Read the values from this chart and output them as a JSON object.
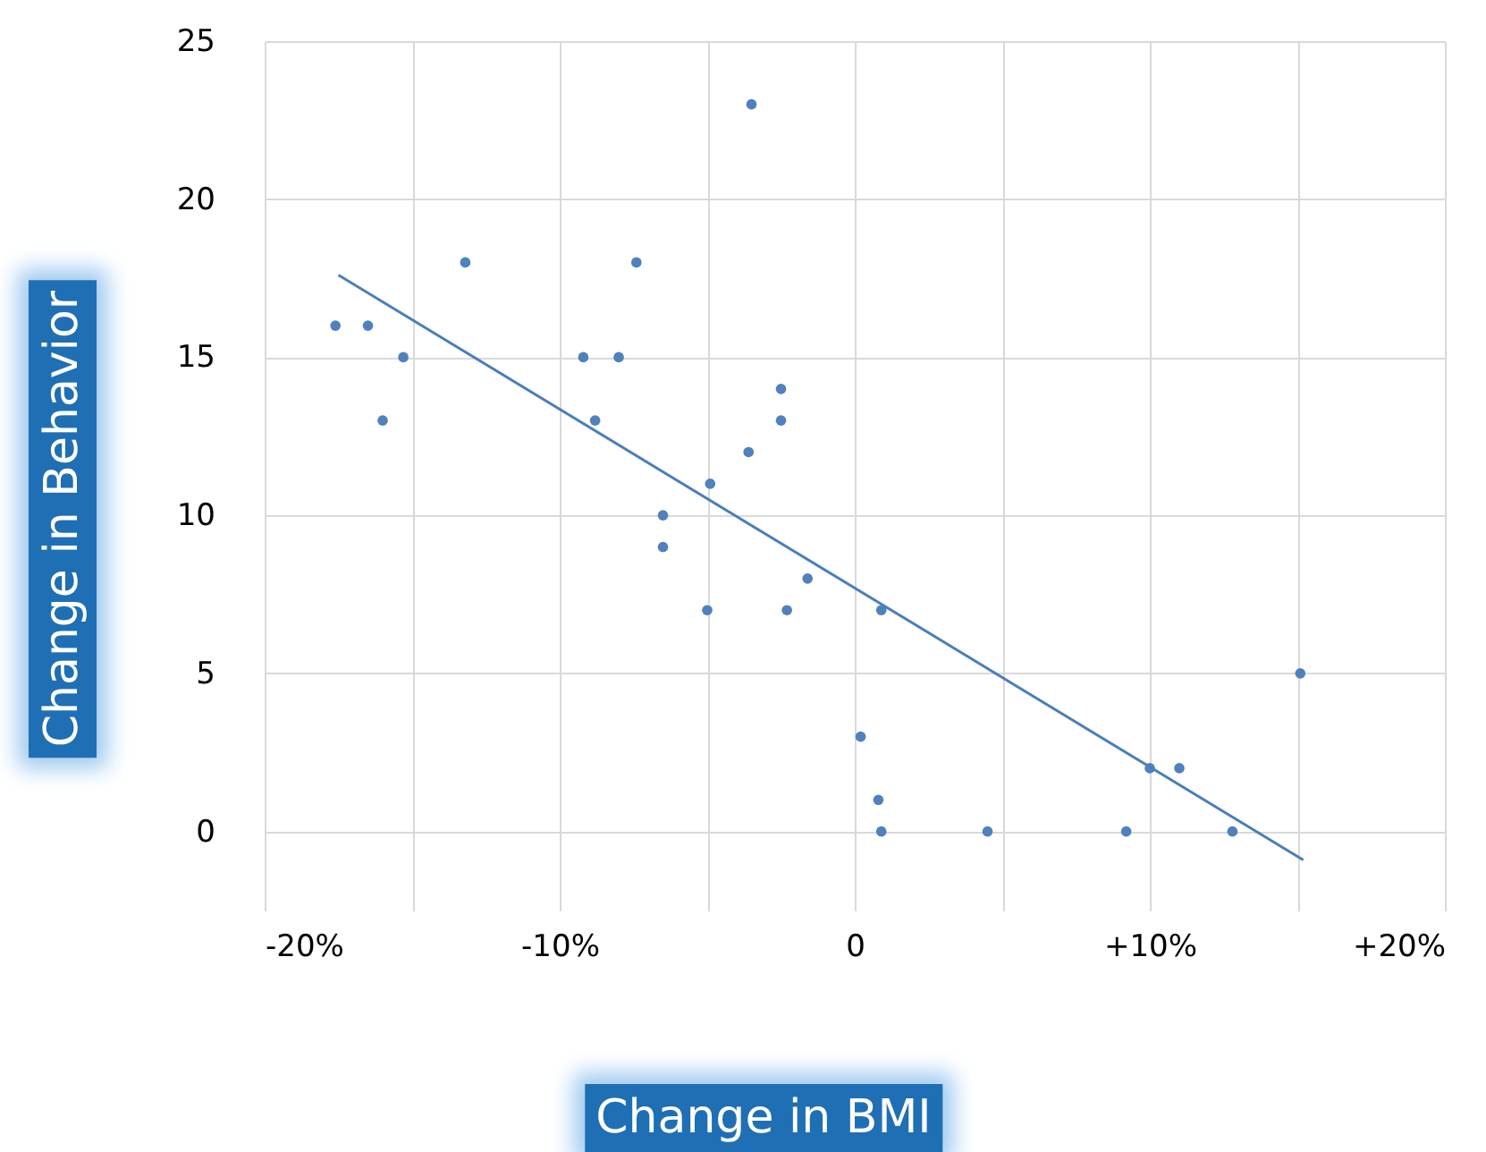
{
  "chart_data": {
    "type": "scatter",
    "xlabel": "Change in BMI",
    "ylabel": "Change in Behavior",
    "xlim": [
      -20,
      20
    ],
    "ylim": [
      -2.5,
      25
    ],
    "xticks": [
      {
        "value": -20,
        "label": "-20%"
      },
      {
        "value": -15,
        "label": null
      },
      {
        "value": -10,
        "label": "-10%"
      },
      {
        "value": -5,
        "label": null
      },
      {
        "value": 0,
        "label": "0"
      },
      {
        "value": 5,
        "label": null
      },
      {
        "value": 10,
        "label": "+10%"
      },
      {
        "value": 15,
        "label": null
      },
      {
        "value": 20,
        "label": "+20%"
      }
    ],
    "yticks": [
      0,
      5,
      10,
      15,
      20,
      25
    ],
    "grid": true,
    "series": [
      {
        "color": "#4f81bd",
        "marker": "circle",
        "x": [
          -17.6,
          -16.5,
          -15.3,
          -16.0,
          -13.2,
          -9.2,
          -8.0,
          -8.8,
          -7.4,
          -3.5,
          -2.5,
          -2.5,
          -3.6,
          -4.9,
          -6.5,
          -6.5,
          -5.0,
          -2.3,
          -1.6,
          0.9,
          0.2,
          0.8,
          0.9,
          4.5,
          9.2,
          10.0,
          11.0,
          12.8,
          15.1
        ],
        "values": [
          16,
          16,
          15,
          13,
          18,
          15,
          15,
          13,
          18,
          23,
          14,
          13,
          12,
          11,
          10,
          9,
          7,
          7,
          8,
          7,
          3,
          1,
          0,
          0,
          0,
          2,
          2,
          0,
          5
        ]
      },
      {
        "type": "line",
        "marker": "none",
        "color": "#4a7ebb",
        "x": [
          -17.5,
          15.2
        ],
        "values": [
          17.6,
          -0.9
        ]
      }
    ]
  }
}
